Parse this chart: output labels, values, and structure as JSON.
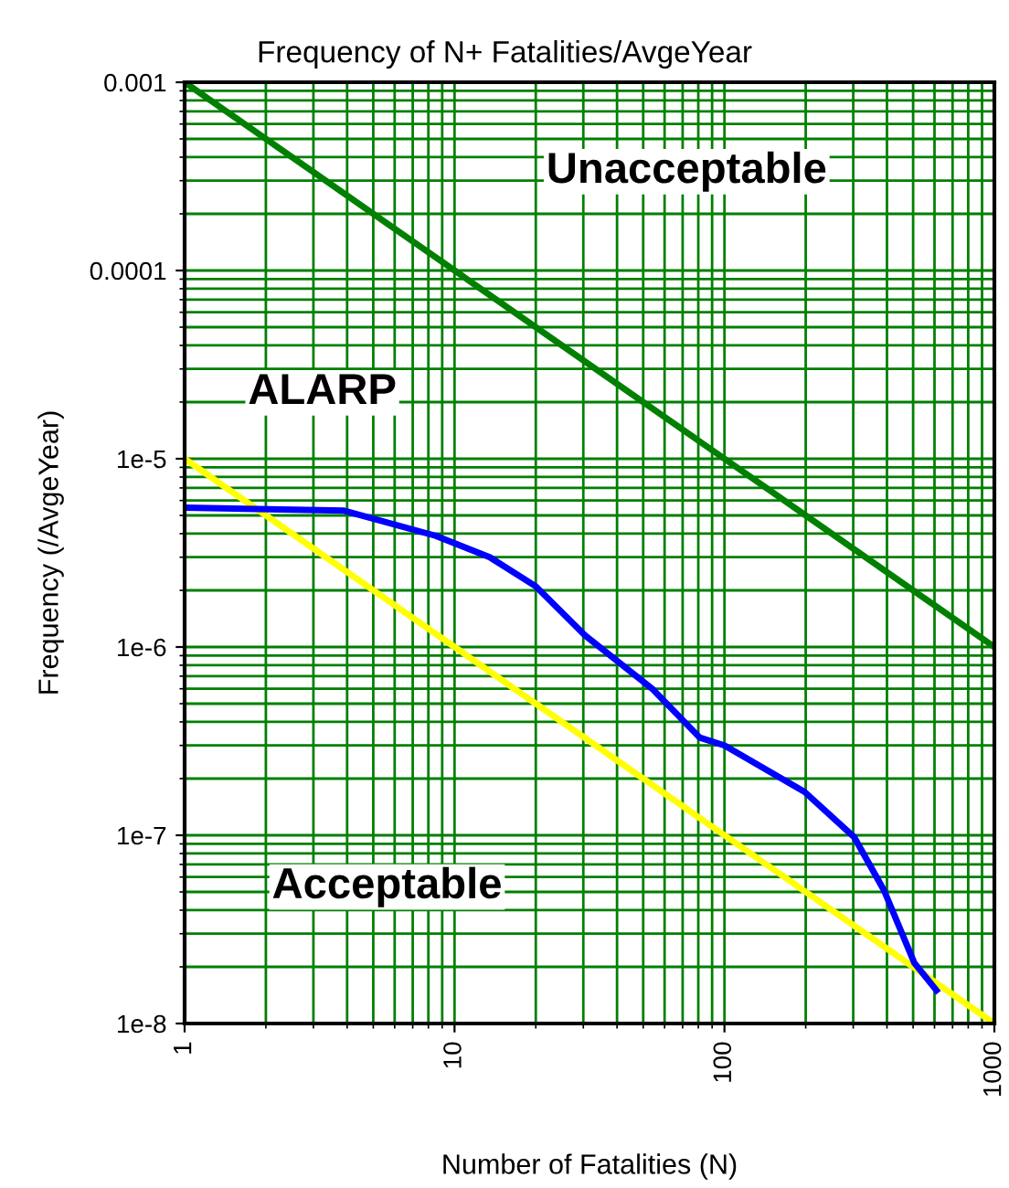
{
  "chart_data": {
    "type": "line",
    "title": "Frequency of N+ Fatalities/AvgeYear",
    "xlabel": "Number of Fatalities (N)",
    "ylabel": "Frequency (/AvgeYear)",
    "log": "xy",
    "grid": true,
    "marker": "none",
    "line_style": "solid",
    "xlim": [
      1,
      1000
    ],
    "xticks": [
      1,
      10,
      100,
      1000
    ],
    "ylim": [
      1e-08,
      0.001
    ],
    "yticks": [
      {
        "value": 0.001,
        "label": "0.001"
      },
      {
        "value": 0.0001,
        "label": "0.0001"
      },
      {
        "value": 1e-05,
        "label": "1e-5"
      },
      {
        "value": 1e-06,
        "label": "1e-6"
      },
      {
        "value": 1e-07,
        "label": "1e-7"
      },
      {
        "value": 1e-08,
        "label": "1e-8"
      }
    ],
    "series": [
      {
        "color": "#008000",
        "x": [
          1,
          1000
        ],
        "values": [
          0.001,
          1e-06
        ]
      },
      {
        "color": "#ffff00",
        "x": [
          1,
          1000
        ],
        "values": [
          1e-05,
          1e-08
        ]
      },
      {
        "color": "#0000ff",
        "x": [
          1,
          3.9,
          8.5,
          13.5,
          20,
          30.5,
          54,
          81,
          100,
          198,
          302,
          390,
          505,
          610
        ],
        "values": [
          5.5e-06,
          5.3e-06,
          3.9e-06,
          3e-06,
          2.1e-06,
          1.15e-06,
          6e-07,
          3.3e-07,
          3e-07,
          1.7e-07,
          9.8e-08,
          5.1e-08,
          2.1e-08,
          1.5e-08
        ]
      }
    ],
    "annotations": [
      "Unacceptable",
      "ALARP",
      "Acceptable"
    ]
  }
}
